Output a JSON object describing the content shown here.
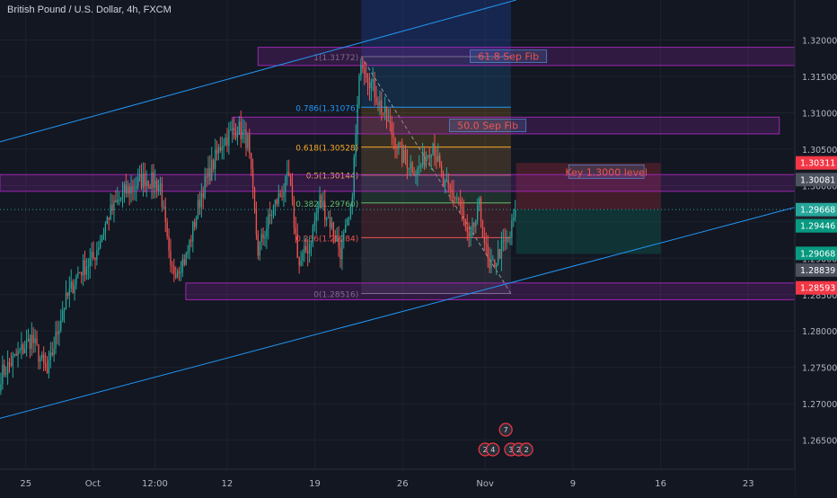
{
  "header": {
    "title": "British Pound / U.S. Dollar, 4h, FXCM"
  },
  "colors": {
    "background": "#131722",
    "grid": "#1e222d",
    "axis_text": "#b2b5be",
    "bull": "#26a69a",
    "bear": "#ef5350",
    "channel": "#2196f3",
    "zone": "#9c27b0",
    "zone_fill": "rgba(156,39,176,0.22)",
    "zone_text": "#ef5350"
  },
  "chart_data": {
    "type": "candlestick",
    "title": "British Pound / U.S. Dollar, 4h, FXCM",
    "ylim": [
      1.261,
      1.3255
    ],
    "y_ticks": [
      1.265,
      1.27,
      1.275,
      1.28,
      1.285,
      1.29,
      1.295,
      1.3,
      1.305,
      1.31,
      1.315,
      1.32
    ],
    "y_tick_labels": [
      "1.26500",
      "1.27000",
      "1.27500",
      "1.28000",
      "1.28500",
      "1.29000",
      "1.29500",
      "1.30000",
      "1.30500",
      "1.31000",
      "1.31500",
      "1.32000"
    ],
    "x_ticks": [
      {
        "label": "25",
        "i": 5
      },
      {
        "label": "Oct",
        "i": 18
      },
      {
        "label": "12:00",
        "i": 30
      },
      {
        "label": "12",
        "i": 44
      },
      {
        "label": "19",
        "i": 61
      },
      {
        "label": "26",
        "i": 78
      },
      {
        "label": "Nov",
        "i": 94
      },
      {
        "label": "9",
        "i": 111
      },
      {
        "label": "16",
        "i": 128
      },
      {
        "label": "23",
        "i": 145
      }
    ],
    "x_range": [
      0,
      154
    ],
    "price_path": [
      [
        0,
        1.274
      ],
      [
        6,
        1.279
      ],
      [
        9,
        1.274
      ],
      [
        12,
        1.283
      ],
      [
        15,
        1.288
      ],
      [
        18,
        1.29
      ],
      [
        21,
        1.296
      ],
      [
        24,
        1.299
      ],
      [
        28,
        1.301
      ],
      [
        31,
        1.3
      ],
      [
        33,
        1.288
      ],
      [
        36,
        1.29
      ],
      [
        39,
        1.299
      ],
      [
        43,
        1.306
      ],
      [
        46,
        1.308
      ],
      [
        48,
        1.306
      ],
      [
        50,
        1.291
      ],
      [
        53,
        1.297
      ],
      [
        56,
        1.301
      ],
      [
        58,
        1.289
      ],
      [
        60,
        1.292
      ],
      [
        62,
        1.298
      ],
      [
        64,
        1.295
      ],
      [
        66,
        1.291
      ],
      [
        68,
        1.296
      ],
      [
        70,
        1.3177
      ],
      [
        72,
        1.314
      ],
      [
        75,
        1.309
      ],
      [
        78,
        1.304
      ],
      [
        81,
        1.302
      ],
      [
        84,
        1.306
      ],
      [
        86,
        1.3
      ],
      [
        89,
        1.298
      ],
      [
        91,
        1.292
      ],
      [
        93,
        1.297
      ],
      [
        95,
        1.288
      ],
      [
        97,
        1.291
      ],
      [
        99,
        1.293
      ],
      [
        100,
        1.2967
      ]
    ],
    "channel_lines": [
      {
        "name": "upper",
        "from": [
          0,
          1.306
        ],
        "to": [
          100,
          1.3255
        ]
      },
      {
        "name": "lower",
        "from": [
          0,
          1.268
        ],
        "to": [
          154,
          1.297
        ]
      }
    ],
    "zones": [
      {
        "label": "61.8 Sep Fib",
        "i_start": 50,
        "i_end": 154,
        "y_low": 1.3165,
        "y_high": 1.319
      },
      {
        "label": "50.0 Sep Fib",
        "i_start": 45,
        "i_end": 151,
        "y_low": 1.3071,
        "y_high": 1.3094
      },
      {
        "label": "",
        "i_start": 0,
        "i_end": 154,
        "y_low": 1.2992,
        "y_high": 1.3015
      },
      {
        "label": "",
        "i_start": 36,
        "i_end": 154,
        "y_low": 1.2843,
        "y_high": 1.2866
      }
    ],
    "fib_levels": [
      {
        "label": "1(1.31772)",
        "value": 1.31772,
        "color": "#787b86"
      },
      {
        "label": "0.786(1.31076)",
        "value": 1.31076,
        "color": "#2196f3"
      },
      {
        "label": "0.618(1.30528)",
        "value": 1.30528,
        "color": "#f9a825"
      },
      {
        "label": "0.5(1.30144)",
        "value": 1.30144,
        "color": "#ffb74d"
      },
      {
        "label": "0.382(1.29760)",
        "value": 1.2976,
        "color": "#66bb6a"
      },
      {
        "label": "0.236(1.29284)",
        "value": 1.29284,
        "color": "#ef5350"
      },
      {
        "label": "0(1.28516)",
        "value": 1.28516,
        "color": "#787b86"
      }
    ],
    "fib_range": {
      "i_start": 70,
      "i_end": 99
    },
    "position_box": {
      "i_start": 100,
      "i_end": 128,
      "entry": 1.2967,
      "target": 1.2906,
      "stop": 1.3031,
      "label": "Key 1.3000 level"
    },
    "price_labels": [
      {
        "text": "1.30311",
        "value": 1.30311,
        "color": "#f23645"
      },
      {
        "text": "1.30081",
        "value": 1.30081,
        "color": "#4c525e"
      },
      {
        "text": "1.29668",
        "value": 1.29668,
        "color": "#26a69a",
        "sub": "48:59"
      },
      {
        "text": "1.29446",
        "value": 1.29446,
        "color": "#089981"
      },
      {
        "text": "1.29068",
        "value": 1.29068,
        "color": "#089981"
      },
      {
        "text": "1.28839",
        "value": 1.28839,
        "color": "#4c525e"
      },
      {
        "text": "1.28593",
        "value": 1.28593,
        "color": "#f23645"
      }
    ],
    "event_markers": [
      {
        "label": "7",
        "i": 98,
        "row": 0
      },
      {
        "label": "2",
        "i": 94,
        "row": 1
      },
      {
        "label": "4",
        "i": 95.5,
        "row": 1
      },
      {
        "label": "3",
        "i": 99,
        "row": 1
      },
      {
        "label": "2",
        "i": 100.5,
        "row": 1
      },
      {
        "label": "2",
        "i": 102,
        "row": 1
      }
    ]
  }
}
